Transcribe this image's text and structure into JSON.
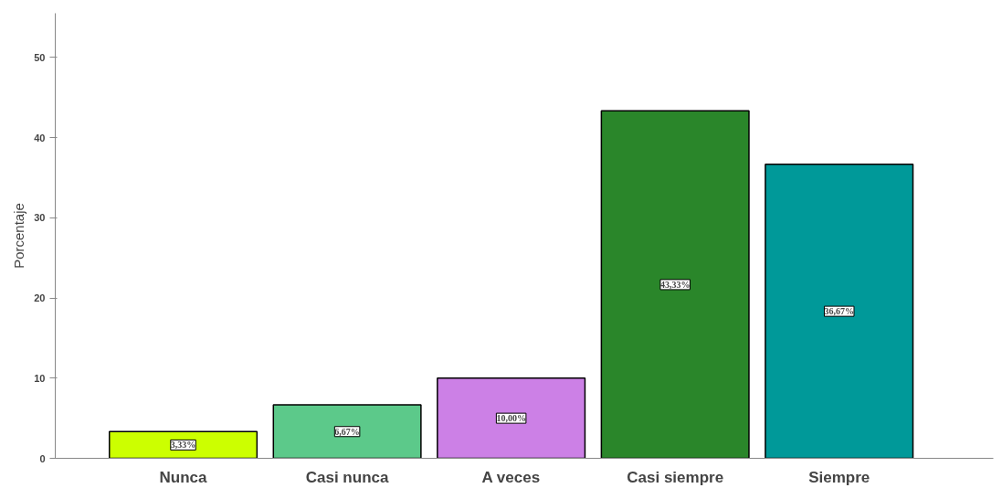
{
  "chart_data": {
    "type": "bar",
    "ylabel": "Porcentaje",
    "categories": [
      "Nunca",
      "Casi nunca",
      "A veces",
      "Casi siempre",
      "Siempre"
    ],
    "values": [
      3.33,
      6.67,
      10.0,
      43.33,
      36.67
    ],
    "value_labels": [
      "3,33%",
      "6,67%",
      "10,00%",
      "43,33%",
      "36,67%"
    ],
    "colors": [
      "#ccff00",
      "#5cc98a",
      "#cc80e6",
      "#2a862a",
      "#009999"
    ],
    "ylim": [
      0,
      55.5
    ],
    "yticks": [
      0,
      10,
      20,
      30,
      40,
      50
    ],
    "grid": false,
    "legend": false
  }
}
